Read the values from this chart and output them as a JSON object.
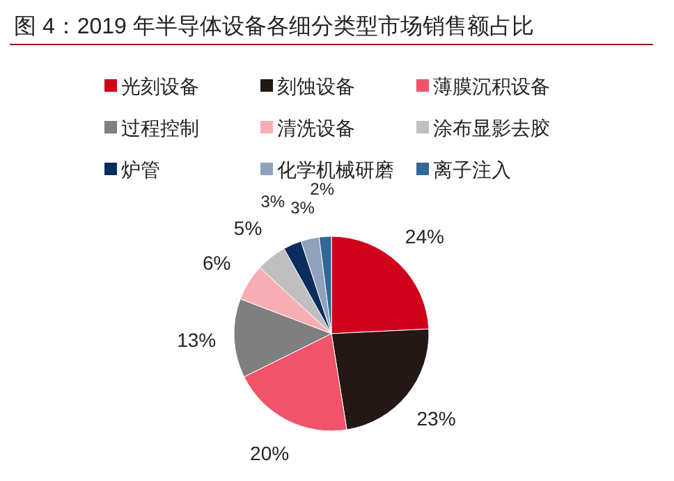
{
  "chart_data": {
    "type": "pie",
    "title": "图 4：2019 年半导体设备各细分类型市场销售额占比",
    "categories": [
      "光刻设备",
      "刻蚀设备",
      "薄膜沉积设备",
      "过程控制",
      "清洗设备",
      "涂布显影去胶",
      "炉管",
      "化学机械研磨",
      "离子注入"
    ],
    "values": [
      24,
      23,
      20,
      13,
      6,
      5,
      3,
      3,
      2
    ],
    "colors": [
      "#d0021b",
      "#231815",
      "#f0546a",
      "#7f7f7f",
      "#f7aeb2",
      "#bfbfbf",
      "#0b2d5e",
      "#8ea3bb",
      "#33679a"
    ],
    "value_labels": [
      "24%",
      "23%",
      "20%",
      "13%",
      "6%",
      "5%",
      "3%",
      "3%",
      "2%"
    ],
    "legend": "top"
  }
}
